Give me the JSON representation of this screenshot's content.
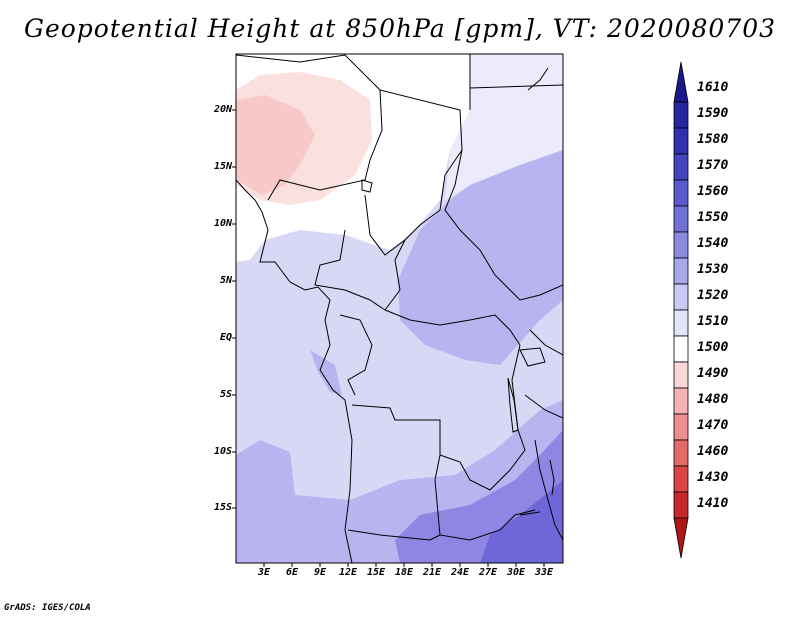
{
  "title": "Geopotential Height at 850hPa [gpm], VT: 2020080703",
  "credit": "GrADS: IGES/COLA",
  "latitude_labels": [
    "20N",
    "15N",
    "10N",
    "5N",
    "EQ",
    "5S",
    "10S",
    "15S"
  ],
  "longitude_labels": [
    "3E",
    "6E",
    "9E",
    "12E",
    "15E",
    "18E",
    "21E",
    "24E",
    "27E",
    "30E",
    "33E"
  ],
  "colorbar": {
    "levels": [
      "1610",
      "1590",
      "1580",
      "1570",
      "1560",
      "1550",
      "1540",
      "1530",
      "1520",
      "1510",
      "1500",
      "1490",
      "1480",
      "1470",
      "1460",
      "1430",
      "1410"
    ],
    "colors": [
      "#1a1a8c",
      "#26269e",
      "#3030b0",
      "#4545c0",
      "#5a5acc",
      "#7070d8",
      "#8a8ae0",
      "#a8a8ea",
      "#c8c8f2",
      "#e4e4f8",
      "#ffffff",
      "#fad8d8",
      "#f5b4b4",
      "#ee9090",
      "#e66a6a",
      "#dd4545",
      "#c82828",
      "#b01818"
    ]
  },
  "map_colors": {
    "base": "#d8d8f6",
    "light": "#ecebfb",
    "mid": "#b8b4f0",
    "deep": "#8e86e2",
    "deepest": "#6f66d8",
    "pink_light": "#fbe0e0",
    "pink": "#f6c8c8",
    "land_white": "#ffffff"
  }
}
